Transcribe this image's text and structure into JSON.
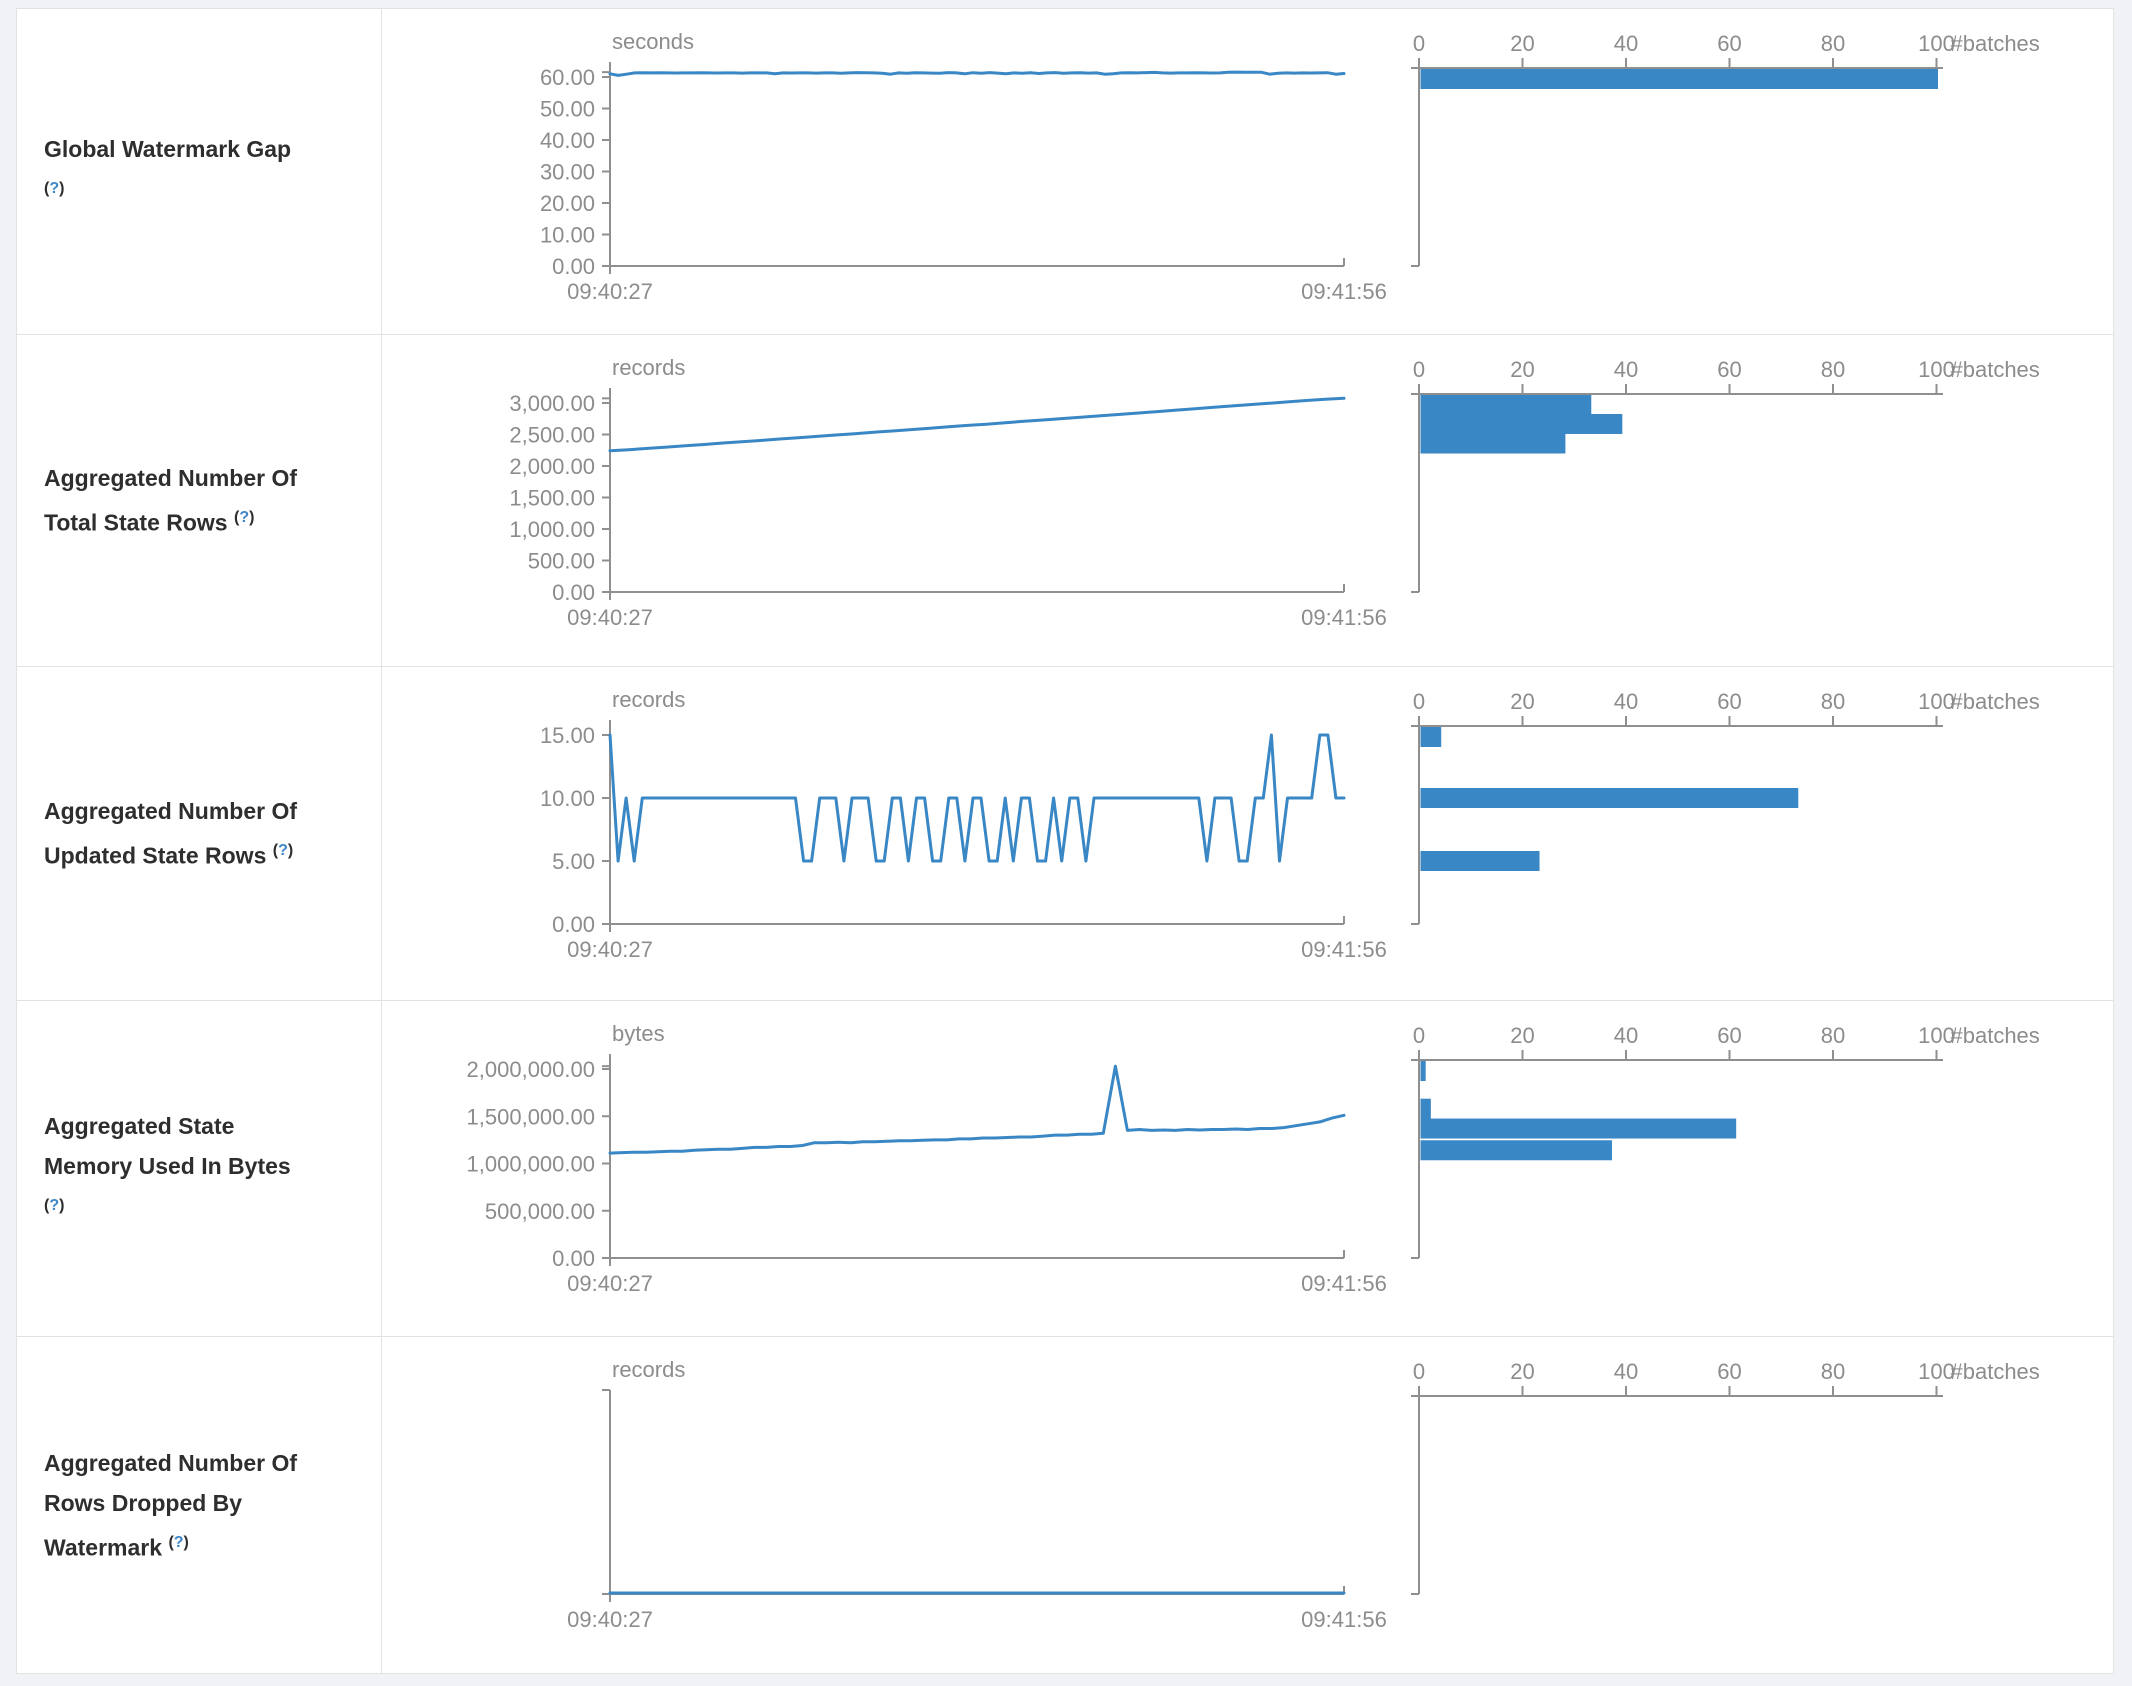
{
  "page": {
    "accent_blue": "#3a87c5",
    "axis_gray": "#8f8f8f",
    "text_gray": "#8c8c8c",
    "border_gray": "#e2e2e2"
  },
  "common_axis": {
    "time_start": "09:40:27",
    "time_end": "09:41:56",
    "batches_label": "#batches",
    "batches_ticks": [
      "0",
      "20",
      "40",
      "60",
      "80",
      "100"
    ],
    "batches_tick_values": [
      0,
      20,
      40,
      60,
      80,
      100
    ]
  },
  "rows": [
    {
      "label_lines": [
        "Global Watermark Gap",
        "(?)"
      ],
      "chart": 0
    },
    {
      "label_lines": [
        "Aggregated Number Of",
        "Total State Rows (?)"
      ],
      "chart": 1
    },
    {
      "label_lines": [
        "Aggregated Number Of",
        "Updated State Rows (?)"
      ],
      "chart": 2
    },
    {
      "label_lines": [
        "Aggregated State",
        "Memory Used In Bytes",
        "(?)"
      ],
      "chart": 3
    },
    {
      "label_lines": [
        "Aggregated Number Of",
        "Rows Dropped By",
        "Watermark (?)"
      ],
      "chart": 4
    }
  ],
  "chart_data": [
    {
      "type": "line",
      "title": "Global Watermark Gap",
      "unit": "seconds",
      "x_start": "09:40:27",
      "x_end": "09:41:56",
      "grid": false,
      "yticks": [
        {
          "v": 0,
          "t": "0.00"
        },
        {
          "v": 10,
          "t": "10.00"
        },
        {
          "v": 20,
          "t": "20.00"
        },
        {
          "v": 30,
          "t": "30.00"
        },
        {
          "v": 40,
          "t": "40.00"
        },
        {
          "v": 50,
          "t": "50.00"
        },
        {
          "v": 60,
          "t": "60.00"
        }
      ],
      "top_tick_value": 60,
      "values": [
        61.0,
        60.5,
        60.9,
        61.3,
        61.35,
        61.3,
        61.32,
        61.3,
        61.28,
        61.3,
        61.3,
        61.32,
        61.3,
        61.28,
        61.3,
        61.3,
        61.25,
        61.3,
        61.3,
        61.3,
        61.0,
        61.3,
        61.28,
        61.3,
        61.3,
        61.25,
        61.3,
        61.3,
        61.2,
        61.3,
        61.4,
        61.35,
        61.3,
        61.2,
        60.9,
        61.3,
        61.2,
        61.35,
        61.3,
        61.25,
        61.2,
        61.4,
        61.3,
        61.0,
        61.35,
        61.2,
        61.4,
        61.25,
        61.0,
        61.3,
        61.2,
        61.35,
        61.1,
        61.3,
        61.4,
        61.2,
        61.3,
        61.35,
        61.25,
        61.3,
        60.9,
        61.0,
        61.3,
        61.35,
        61.3,
        61.4,
        61.45,
        61.3,
        61.25,
        61.3,
        61.3,
        61.35,
        61.3,
        61.28,
        61.3,
        61.5,
        61.55,
        61.5,
        61.52,
        61.5,
        60.9,
        61.2,
        61.3,
        61.25,
        61.3,
        61.28,
        61.3,
        61.35,
        60.9,
        61.1
      ],
      "histogram": {
        "xlabel": "#batches",
        "xticks": [
          0,
          20,
          40,
          60,
          80,
          100
        ],
        "bars": [
          {
            "value": 61,
            "count": 100
          }
        ]
      }
    },
    {
      "type": "line",
      "title": "Aggregated Number Of Total State Rows",
      "unit": "records",
      "x_start": "09:40:27",
      "x_end": "09:41:56",
      "grid": false,
      "yticks": [
        {
          "v": 0,
          "t": "0.00"
        },
        {
          "v": 500,
          "t": "500.00"
        },
        {
          "v": 1000,
          "t": "1,000.00"
        },
        {
          "v": 1500,
          "t": "1,500.00"
        },
        {
          "v": 2000,
          "t": "2,000.00"
        },
        {
          "v": 2500,
          "t": "2,500.00"
        },
        {
          "v": 3000,
          "t": "3,000.00"
        }
      ],
      "top_tick_value": 3000,
      "values": [
        2242,
        2258,
        2280,
        2300,
        2320,
        2342,
        2365,
        2384,
        2405,
        2428,
        2450,
        2470,
        2492,
        2512,
        2535,
        2556,
        2578,
        2600,
        2622,
        2645,
        2664,
        2688,
        2710,
        2730,
        2752,
        2775,
        2796,
        2818,
        2840,
        2862,
        2884,
        2906,
        2930,
        2952,
        2975,
        2996,
        3018,
        3040,
        3060,
        3074
      ],
      "histogram": {
        "xlabel": "#batches",
        "xticks": [
          0,
          20,
          40,
          60,
          80,
          100
        ],
        "bars": [
          {
            "value": 3000,
            "count": 33
          },
          {
            "value": 2667,
            "count": 39
          },
          {
            "value": 2357,
            "count": 28
          }
        ]
      }
    },
    {
      "type": "line",
      "title": "Aggregated Number Of Updated State Rows",
      "unit": "records",
      "x_start": "09:40:27",
      "x_end": "09:41:56",
      "grid": false,
      "yticks": [
        {
          "v": 0,
          "t": "0.00"
        },
        {
          "v": 5,
          "t": "5.00"
        },
        {
          "v": 10,
          "t": "10.00"
        },
        {
          "v": 15,
          "t": "15.00"
        }
      ],
      "top_tick_value": 15,
      "values": [
        15,
        5,
        10,
        5,
        10,
        10,
        10,
        10,
        10,
        10,
        10,
        10,
        10,
        10,
        10,
        10,
        10,
        10,
        10,
        10,
        10,
        10,
        10,
        10,
        5,
        5,
        10,
        10,
        10,
        5,
        10,
        10,
        10,
        5,
        5,
        10,
        10,
        5,
        10,
        10,
        5,
        5,
        10,
        10,
        5,
        10,
        10,
        5,
        5,
        10,
        5,
        10,
        10,
        5,
        5,
        10,
        5,
        10,
        10,
        5,
        10,
        10,
        10,
        10,
        10,
        10,
        10,
        10,
        10,
        10,
        10,
        10,
        10,
        10,
        5,
        10,
        10,
        10,
        5,
        5,
        10,
        10,
        15,
        5,
        10,
        10,
        10,
        10,
        15,
        15,
        10,
        10
      ],
      "histogram": {
        "xlabel": "#batches",
        "xticks": [
          0,
          20,
          40,
          60,
          80,
          100
        ],
        "bars": [
          {
            "value": 15,
            "count": 4
          },
          {
            "value": 10,
            "count": 73
          },
          {
            "value": 5,
            "count": 23
          }
        ]
      }
    },
    {
      "type": "line",
      "title": "Aggregated State Memory Used In Bytes",
      "unit": "bytes",
      "x_start": "09:40:27",
      "x_end": "09:41:56",
      "grid": false,
      "yticks": [
        {
          "v": 0,
          "t": "0.00"
        },
        {
          "v": 500000,
          "t": "500,000.00"
        },
        {
          "v": 1000000,
          "t": "1,000,000.00"
        },
        {
          "v": 1500000,
          "t": "1,500,000.00"
        },
        {
          "v": 2000000,
          "t": "2,000,000.00"
        }
      ],
      "top_tick_value": 2000000,
      "values": [
        1110000,
        1115000,
        1120000,
        1120000,
        1125000,
        1130000,
        1130000,
        1140000,
        1145000,
        1150000,
        1150000,
        1160000,
        1170000,
        1170000,
        1180000,
        1180000,
        1190000,
        1220000,
        1220000,
        1225000,
        1220000,
        1230000,
        1230000,
        1235000,
        1240000,
        1240000,
        1245000,
        1250000,
        1250000,
        1260000,
        1260000,
        1270000,
        1270000,
        1275000,
        1280000,
        1280000,
        1290000,
        1300000,
        1300000,
        1310000,
        1310000,
        1320000,
        2030000,
        1350000,
        1360000,
        1350000,
        1355000,
        1350000,
        1360000,
        1355000,
        1360000,
        1360000,
        1365000,
        1360000,
        1370000,
        1370000,
        1380000,
        1400000,
        1420000,
        1440000,
        1480000,
        1510000
      ],
      "histogram": {
        "xlabel": "#batches",
        "xticks": [
          0,
          20,
          40,
          60,
          80,
          100
        ],
        "bars": [
          {
            "value": 2030000,
            "count": 1
          },
          {
            "value": 1580000,
            "count": 2
          },
          {
            "value": 1370000,
            "count": 61
          },
          {
            "value": 1140000,
            "count": 37
          }
        ]
      }
    },
    {
      "type": "line",
      "title": "Aggregated Number Of Rows Dropped By Watermark",
      "unit": "records",
      "x_start": "09:40:27",
      "x_end": "09:41:56",
      "grid": false,
      "yticks": [],
      "top_tick_value": 0,
      "values": [
        0,
        0,
        0,
        0,
        0,
        0,
        0,
        0,
        0,
        0,
        0,
        0,
        0,
        0,
        0,
        0,
        0,
        0,
        0,
        0,
        0,
        0,
        0,
        0,
        0,
        0,
        0,
        0,
        0,
        0,
        0,
        0,
        0,
        0,
        0,
        0,
        0,
        0,
        0,
        0,
        0,
        0,
        0,
        0,
        0,
        0,
        0,
        0,
        0,
        0
      ],
      "histogram": {
        "xlabel": "#batches",
        "xticks": [
          0,
          20,
          40,
          60,
          80,
          100
        ],
        "bars": []
      }
    }
  ]
}
